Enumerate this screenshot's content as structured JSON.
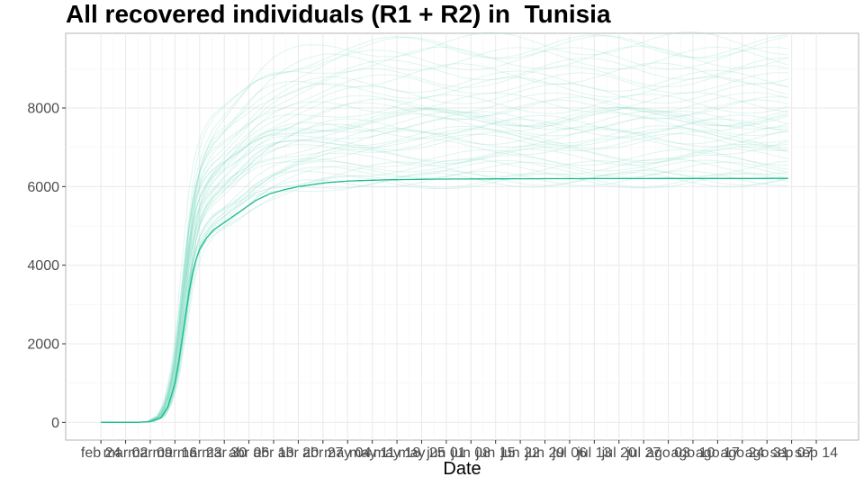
{
  "chart_data": {
    "type": "line",
    "title": "All recovered individuals (R1 + R2) in  Tunisia",
    "xlabel": "Date",
    "ylabel": "",
    "x_tick_labels": [
      "feb 24",
      "mar 02",
      "mar 09",
      "mar 16",
      "mar 23",
      "mar 30",
      "abr 06",
      "abr 13",
      "abr 20",
      "abr 27",
      "may 04",
      "may 11",
      "may 18",
      "may 25",
      "jun 01",
      "jun 08",
      "jun 15",
      "jun 22",
      "jun 29",
      "jul 06",
      "jul 13",
      "jul 20",
      "jul 27",
      "ago 03",
      "ago 10",
      "ago 17",
      "ago 24",
      "ago 31",
      "sep 07",
      "sep 14"
    ],
    "x_range_days": [
      0,
      202
    ],
    "x_origin_label": "feb 24",
    "ylim": [
      -450,
      9900
    ],
    "y_ticks": [
      0,
      2000,
      4000,
      6000,
      8000
    ],
    "grid": true,
    "main_series": {
      "color": "#1abc8c",
      "points": [
        [
          0,
          0
        ],
        [
          10,
          2
        ],
        [
          14,
          20
        ],
        [
          17,
          120
        ],
        [
          19,
          400
        ],
        [
          21,
          1000
        ],
        [
          22,
          1500
        ],
        [
          23,
          2100
        ],
        [
          24,
          2700
        ],
        [
          25,
          3300
        ],
        [
          26,
          3800
        ],
        [
          27,
          4150
        ],
        [
          28,
          4400
        ],
        [
          30,
          4700
        ],
        [
          32,
          4900
        ],
        [
          36,
          5150
        ],
        [
          40,
          5400
        ],
        [
          44,
          5650
        ],
        [
          48,
          5820
        ],
        [
          52,
          5920
        ],
        [
          56,
          6000
        ],
        [
          60,
          6050
        ],
        [
          64,
          6100
        ],
        [
          70,
          6140
        ],
        [
          80,
          6170
        ],
        [
          95,
          6190
        ],
        [
          120,
          6200
        ],
        [
          150,
          6205
        ],
        [
          180,
          6207
        ],
        [
          195,
          6208
        ]
      ]
    },
    "ensemble": {
      "color": "#7fdcc4",
      "count": 48,
      "final_min": 6150,
      "final_max": 9650,
      "x_end": 195
    }
  }
}
